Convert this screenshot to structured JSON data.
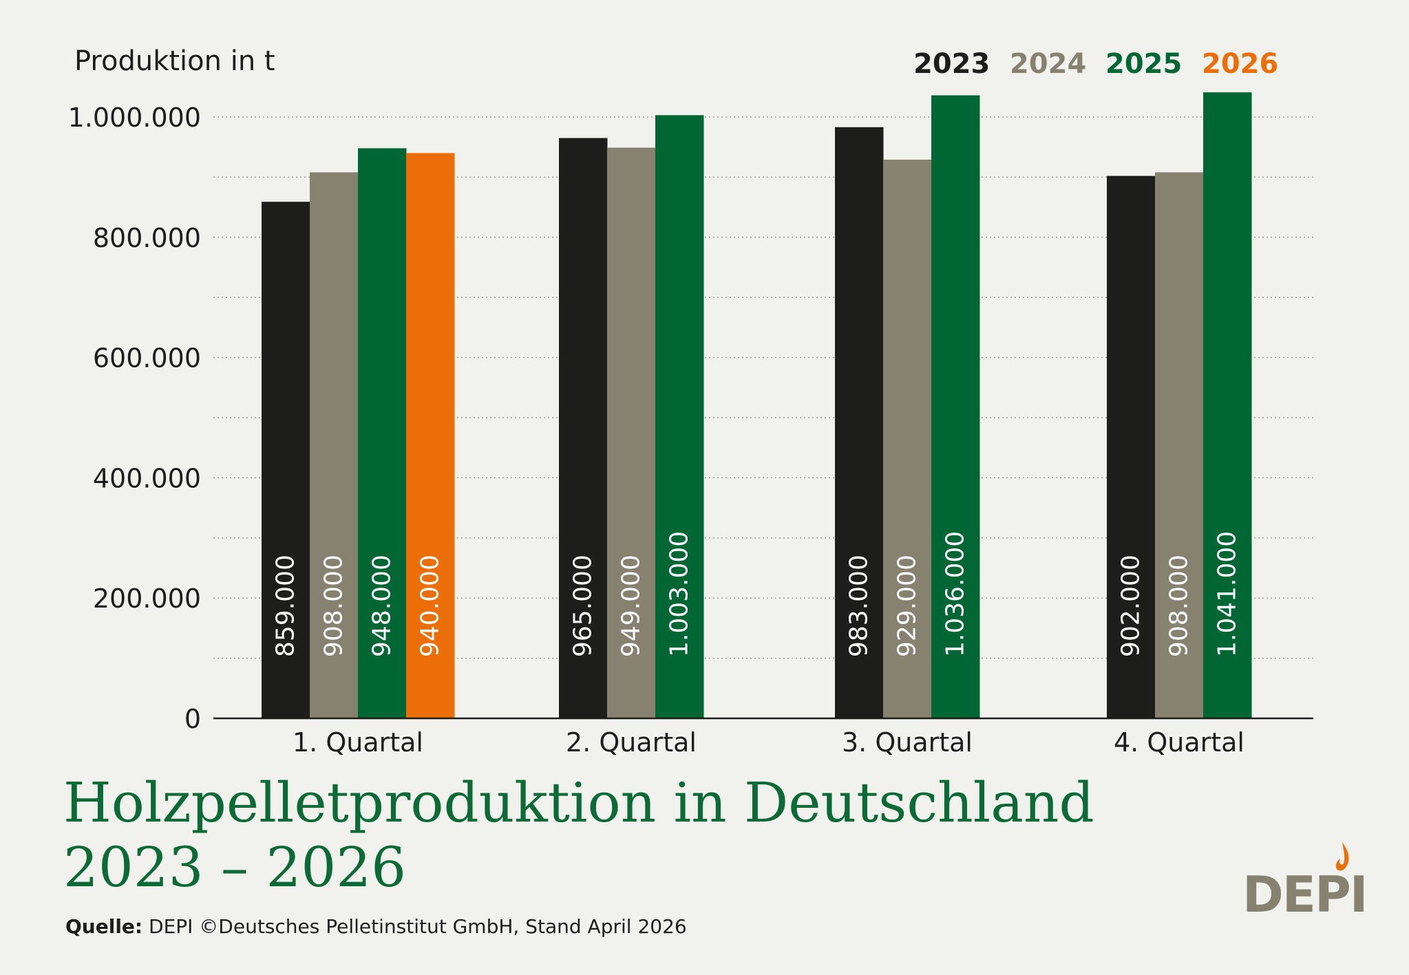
{
  "header": {
    "ylabel": "Produktion in t"
  },
  "legend": [
    {
      "label": "2023",
      "color": "#1d1d1b"
    },
    {
      "label": "2024",
      "color": "#878270"
    },
    {
      "label": "2025",
      "color": "#006633"
    },
    {
      "label": "2026",
      "color": "#ec6e08"
    }
  ],
  "chart_data": {
    "type": "bar",
    "categories": [
      "1. Quartal",
      "2. Quartal",
      "3. Quartal",
      "4. Quartal"
    ],
    "series": [
      {
        "name": "2023",
        "color": "#1d1d1b",
        "values": [
          859000,
          965000,
          983000,
          902000
        ],
        "labels": [
          "859.000",
          "965.000",
          "983.000",
          "902.000"
        ]
      },
      {
        "name": "2024",
        "color": "#878270",
        "values": [
          908000,
          949000,
          929000,
          908000
        ],
        "labels": [
          "908.000",
          "949.000",
          "929.000",
          "908.000"
        ]
      },
      {
        "name": "2025",
        "color": "#006633",
        "values": [
          948000,
          1003000,
          1036000,
          1041000
        ],
        "labels": [
          "948.000",
          "1.003.000",
          "1.036.000",
          "1.041.000"
        ]
      },
      {
        "name": "2026",
        "color": "#ec6e08",
        "values": [
          940000,
          null,
          null,
          null
        ],
        "labels": [
          "940.000",
          null,
          null,
          null
        ]
      }
    ],
    "ylabel": "Produktion in t",
    "xlabel": "",
    "ylim": [
      0,
      1000000
    ],
    "yticks": [
      0,
      200000,
      400000,
      600000,
      800000,
      1000000
    ],
    "ytick_labels": [
      "0",
      "200.000",
      "400.000",
      "600.000",
      "800.000",
      "1.000.000"
    ],
    "grid": true,
    "legend_position": "top-right"
  },
  "footer": {
    "title_line1": "Holzpelletproduktion in Deutschland",
    "title_line2": "2023 – 2026",
    "source_label": "Quelle:",
    "source_text": " DEPI  ©Deutsches Pelletinstitut GmbH, Stand April 2026",
    "logo_text": "DEPI",
    "logo_flame_color": "#ec6e08"
  }
}
